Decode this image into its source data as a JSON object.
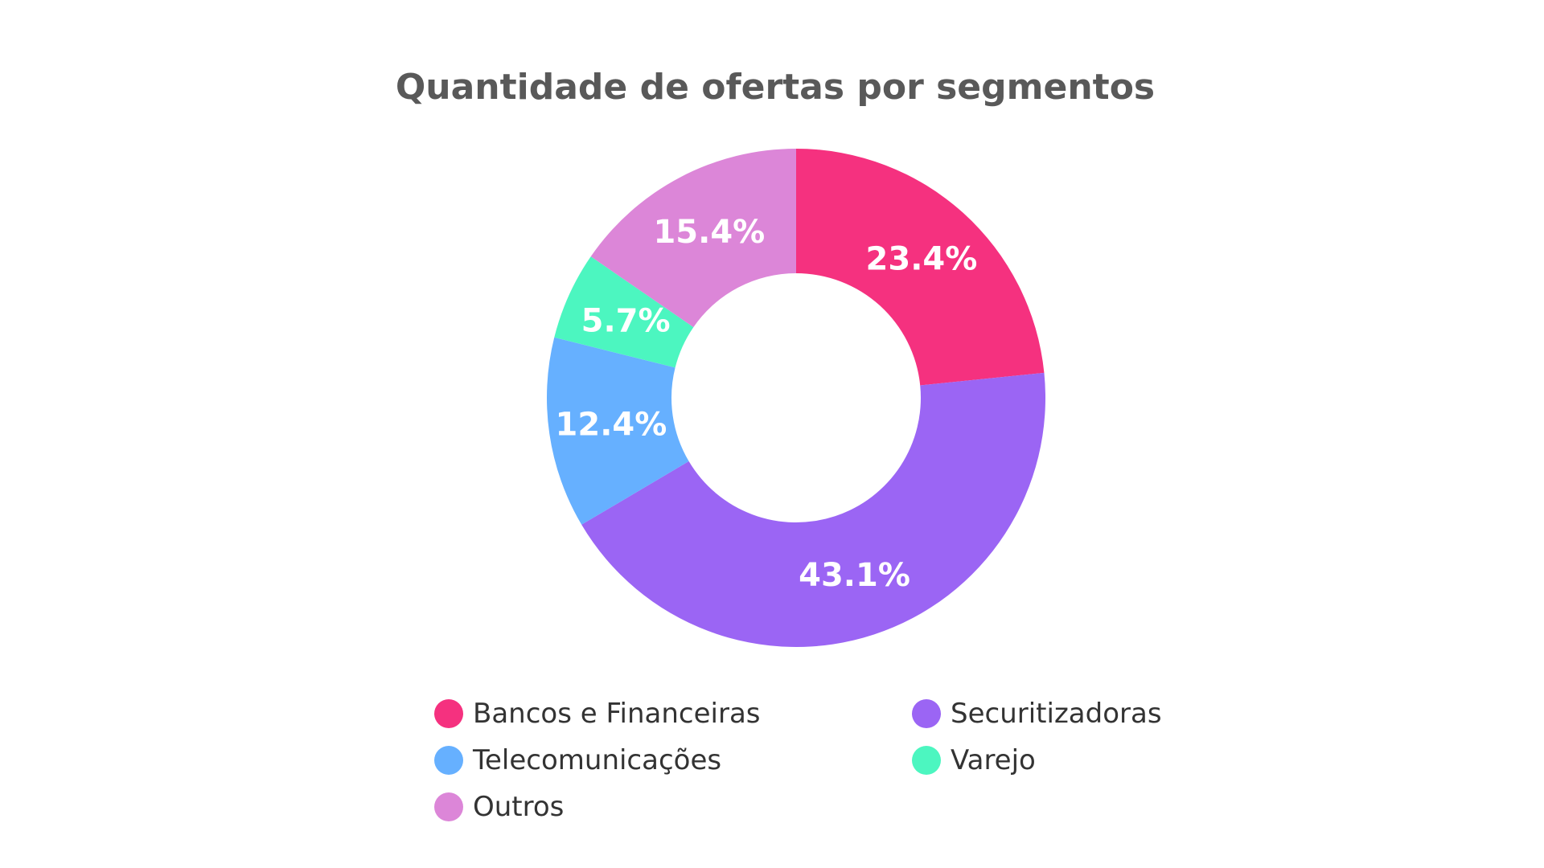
{
  "chart_data": {
    "type": "pie",
    "variant": "donut",
    "title": "Quantidade de ofertas por segmentos",
    "categories": [
      "Bancos e Financeiras",
      "Securitizadoras",
      "Telecomunicações",
      "Varejo",
      "Outros"
    ],
    "values": [
      23.4,
      43.1,
      12.4,
      5.7,
      15.4
    ],
    "data_labels": [
      "23.4%",
      "43.1%",
      "12.4%",
      "5.7%",
      "15.4%"
    ],
    "colors": [
      "#f5317f",
      "#9b65f4",
      "#66b0ff",
      "#4cf6c0",
      "#dc86d8"
    ],
    "legend_position": "bottom"
  }
}
